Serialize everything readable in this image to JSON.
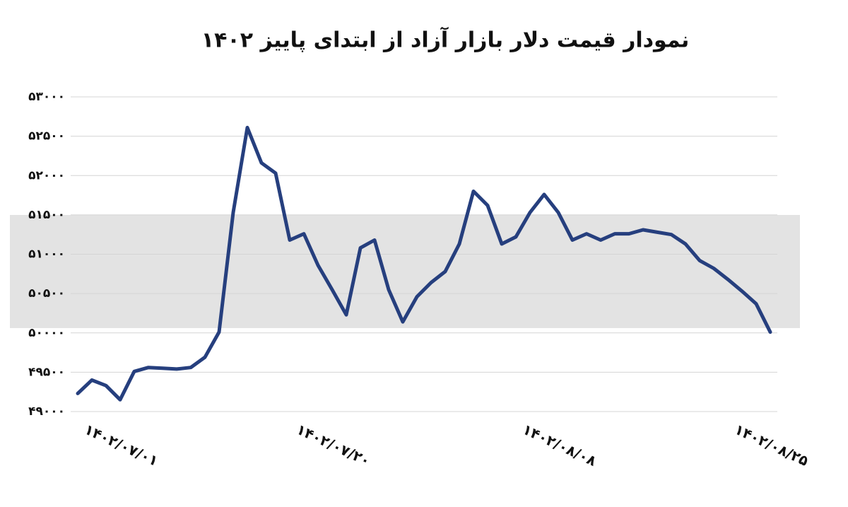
{
  "chart_data": {
    "type": "line",
    "title": "نمودار قیمت دلار بازار آزاد از ابتدای پاییز ۱۴۰۲",
    "categories": [
      "۱۴۰۲/۰۷/۰۱",
      null,
      null,
      null,
      null,
      null,
      null,
      null,
      null,
      null,
      null,
      null,
      null,
      null,
      null,
      "۱۴۰۲/۰۷/۲۰",
      null,
      null,
      null,
      null,
      null,
      null,
      null,
      null,
      null,
      null,
      null,
      null,
      null,
      null,
      null,
      "۱۴۰۲/۰۸/۰۸",
      null,
      null,
      null,
      null,
      null,
      null,
      null,
      null,
      null,
      null,
      null,
      null,
      null,
      null,
      "۱۴۰۲/۰۸/۲۵",
      null,
      null,
      null
    ],
    "values": [
      49230,
      49400,
      49330,
      49150,
      49510,
      49560,
      49550,
      49540,
      49560,
      49690,
      50010,
      51530,
      52610,
      52160,
      52030,
      51180,
      51260,
      50860,
      50550,
      50230,
      51080,
      51180,
      50550,
      50140,
      50460,
      50640,
      50780,
      51130,
      51800,
      51620,
      51130,
      51220,
      51530,
      51760,
      51530,
      51180,
      51260,
      51180,
      51260,
      51260,
      51310,
      51280,
      51250,
      51130,
      50920,
      50820,
      50680,
      50530,
      50370,
      50010
    ],
    "color": "#263f7e",
    "ylim": [
      49000,
      53000
    ],
    "yticks": [
      {
        "value": 49000,
        "label": "۴۹۰۰۰"
      },
      {
        "value": 49500,
        "label": "۴۹۵۰۰"
      },
      {
        "value": 50000,
        "label": "۵۰۰۰۰"
      },
      {
        "value": 50500,
        "label": "۵۰۵۰۰"
      },
      {
        "value": 51000,
        "label": "۵۱۰۰۰"
      },
      {
        "value": 51500,
        "label": "۵۱۵۰۰"
      },
      {
        "value": 52000,
        "label": "۵۲۰۰۰"
      },
      {
        "value": 52500,
        "label": "۵۲۵۰۰"
      },
      {
        "value": 53000,
        "label": "۵۳۰۰۰"
      }
    ],
    "grid": true
  }
}
